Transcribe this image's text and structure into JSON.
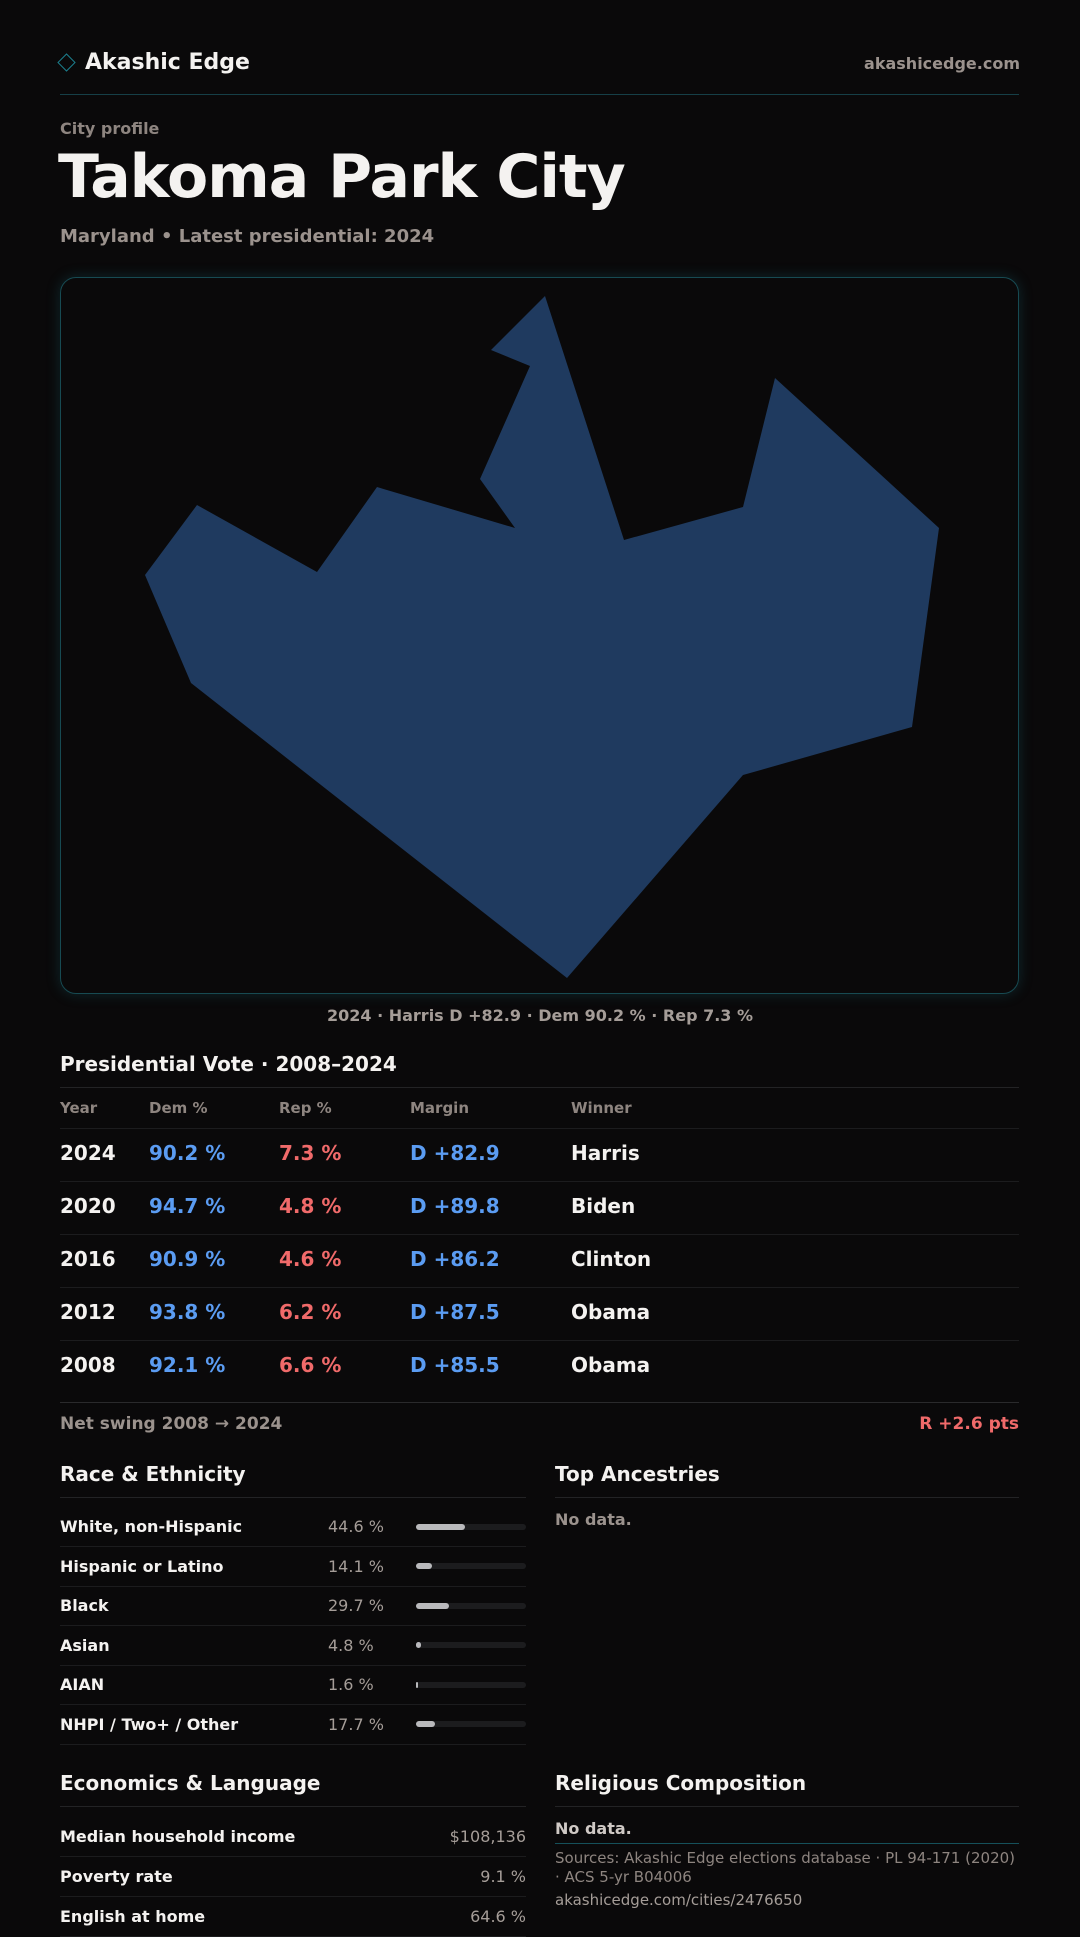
{
  "header": {
    "brand": "Akashic Edge",
    "site": "akashicedge.com",
    "logo_icon": "diamond-icon"
  },
  "profile": {
    "eyebrow": "City profile",
    "title": "Takoma Park City",
    "subtitle": "Maryland • Latest presidential: 2024"
  },
  "map": {
    "fill": "#1f3a5f",
    "caption": "2024 · Harris D +82.9 · Dem 90.2 % · Rep 7.3 %"
  },
  "presidential": {
    "title": "Presidential Vote · 2008–2024",
    "headers": [
      "Year",
      "Dem %",
      "Rep %",
      "Margin",
      "Winner"
    ],
    "rows": [
      [
        "2024",
        "90.2 %",
        "7.3 %",
        "D +82.9",
        "Harris"
      ],
      [
        "2020",
        "94.7 %",
        "4.8 %",
        "D +89.8",
        "Biden"
      ],
      [
        "2016",
        "90.9 %",
        "4.6 %",
        "D +86.2",
        "Clinton"
      ],
      [
        "2012",
        "93.8 %",
        "6.2 %",
        "D +87.5",
        "Obama"
      ],
      [
        "2008",
        "92.1 %",
        "6.6 %",
        "D +85.5",
        "Obama"
      ]
    ],
    "swing_label": "Net swing 2008 → 2024",
    "swing_value": "R +2.6 pts"
  },
  "race": {
    "title": "Race & Ethnicity",
    "rows": [
      {
        "label": "White, non-Hispanic",
        "value": "44.6 %",
        "pct": 44.6
      },
      {
        "label": "Hispanic or Latino",
        "value": "14.1 %",
        "pct": 14.1
      },
      {
        "label": "Black",
        "value": "29.7 %",
        "pct": 29.7
      },
      {
        "label": "Asian",
        "value": "4.8 %",
        "pct": 4.8
      },
      {
        "label": "AIAN",
        "value": "1.6 %",
        "pct": 1.6
      },
      {
        "label": "NHPI / Two+ / Other",
        "value": "17.7 %",
        "pct": 17.7
      }
    ]
  },
  "ancestries": {
    "title": "Top Ancestries",
    "empty": "No data."
  },
  "economics": {
    "title": "Economics & Language",
    "rows": [
      {
        "label": "Median household income",
        "value": "$108,136"
      },
      {
        "label": "Poverty rate",
        "value": "9.1 %"
      },
      {
        "label": "English at home",
        "value": "64.6 %"
      }
    ]
  },
  "religion": {
    "title": "Religious Composition",
    "empty": "No data."
  },
  "footer": {
    "sources": "Sources: Akashic Edge elections database · PL 94-171 (2020) · ACS 5-yr B04006",
    "url": "akashicedge.com/cities/2476650"
  },
  "colors": {
    "dem": "#5b9cf2",
    "rep": "#f06a6a",
    "accent": "#1b7f8e"
  }
}
